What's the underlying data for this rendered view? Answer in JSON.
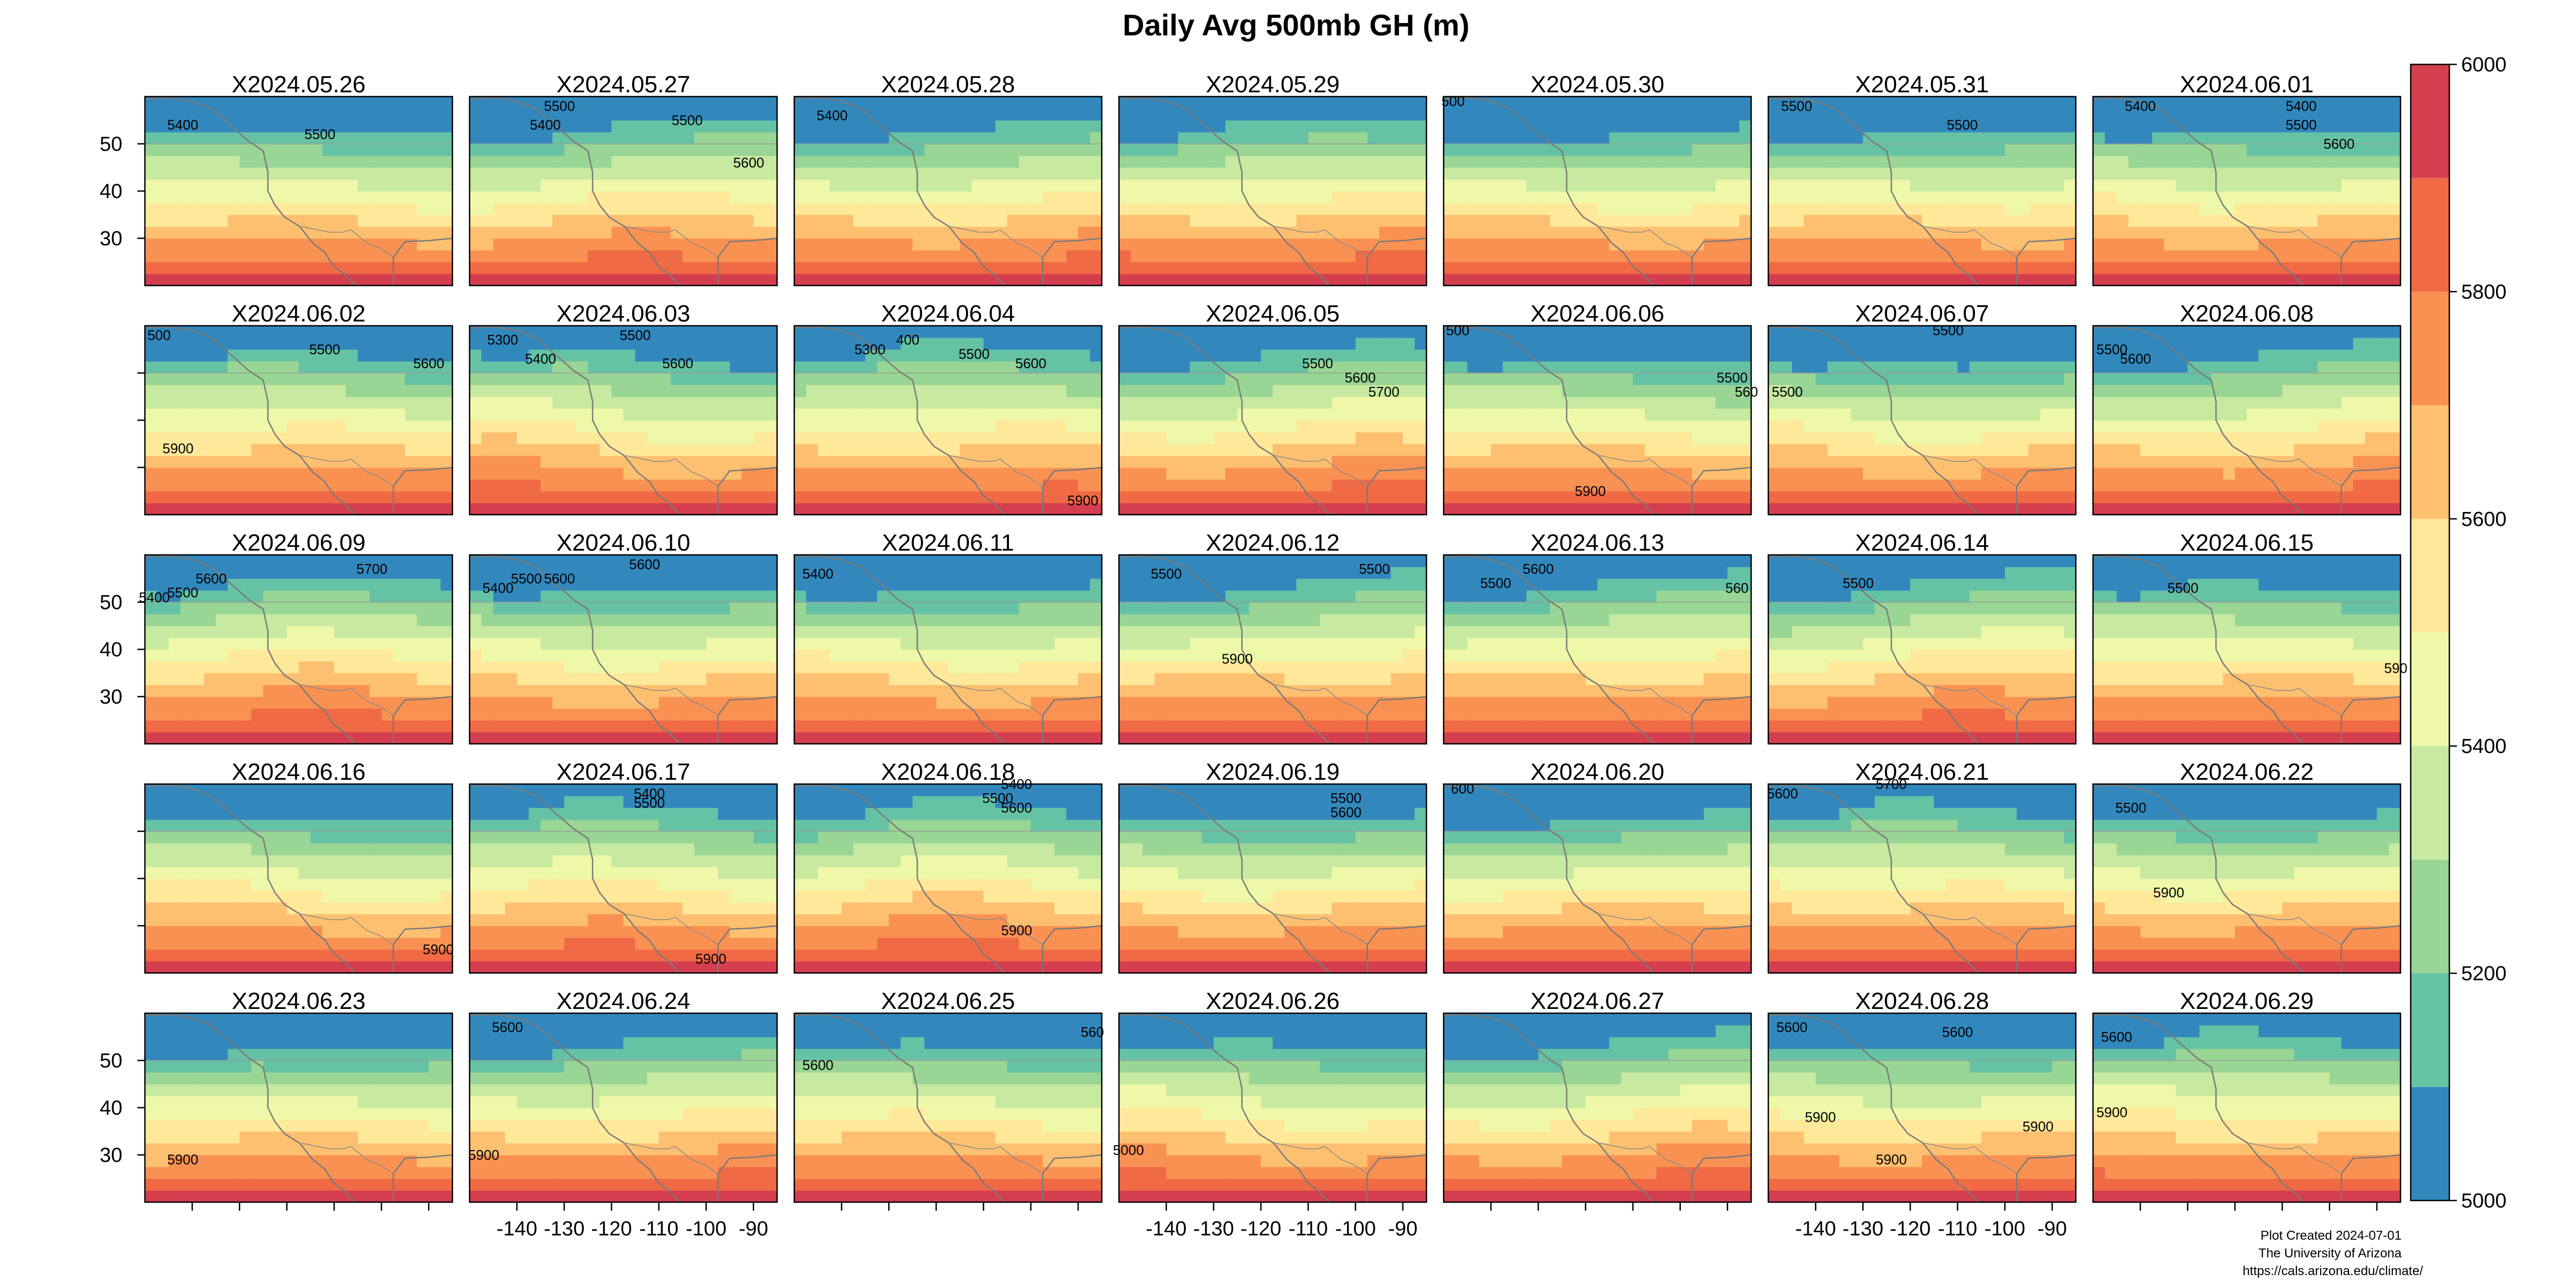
{
  "chart_data": {
    "type": "heatmap",
    "title": "Daily Avg 500mb GH (m)",
    "panels": [
      "X2024.05.26",
      "X2024.05.27",
      "X2024.05.28",
      "X2024.05.29",
      "X2024.05.30",
      "X2024.05.31",
      "X2024.06.01",
      "X2024.06.02",
      "X2024.06.03",
      "X2024.06.04",
      "X2024.06.05",
      "X2024.06.06",
      "X2024.06.07",
      "X2024.06.08",
      "X2024.06.09",
      "X2024.06.10",
      "X2024.06.11",
      "X2024.06.12",
      "X2024.06.13",
      "X2024.06.14",
      "X2024.06.15",
      "X2024.06.16",
      "X2024.06.17",
      "X2024.06.18",
      "X2024.06.19",
      "X2024.06.20",
      "X2024.06.21",
      "X2024.06.22",
      "X2024.06.23",
      "X2024.06.24",
      "X2024.06.25",
      "X2024.06.26",
      "X2024.06.27",
      "X2024.06.28",
      "X2024.06.29"
    ],
    "xlim": [
      -150,
      -85
    ],
    "ylim": [
      20,
      60
    ],
    "x_ticks": [
      -140,
      -130,
      -120,
      -110,
      -100,
      -90
    ],
    "x_tick_labels": [
      "-140",
      "-130",
      "-120",
      "-110",
      "-100",
      "-90"
    ],
    "y_ticks": [
      30,
      40,
      50
    ],
    "y_tick_labels": [
      "30",
      "40",
      "50"
    ],
    "colorbar": {
      "range": [
        5000,
        6000
      ],
      "breaks": [
        5000,
        5100,
        5200,
        5300,
        5400,
        5500,
        5600,
        5700,
        5800,
        5900,
        6000
      ],
      "labels": [
        "5000",
        "5200",
        "5400",
        "5600",
        "5800",
        "6000"
      ],
      "colors": [
        "#3288bd",
        "#66c2a5",
        "#99d594",
        "#c7e9a0",
        "#eef8a8",
        "#fee89a",
        "#fdc070",
        "#f99153",
        "#ef6a45",
        "#d53e4f"
      ]
    },
    "contour_labels": [
      [
        {
          "t": "5400",
          "x": -142,
          "y": 53
        },
        {
          "t": "5500",
          "x": -113,
          "y": 51
        }
      ],
      [
        {
          "t": "5400",
          "x": -134,
          "y": 53
        },
        {
          "t": "5500",
          "x": -131,
          "y": 57
        },
        {
          "t": "5500",
          "x": -104,
          "y": 54
        },
        {
          "t": "5600",
          "x": -91,
          "y": 45
        }
      ],
      [
        {
          "t": "5400",
          "x": -142,
          "y": 55
        }
      ],
      [],
      [
        {
          "t": "500",
          "x": -148,
          "y": 58
        }
      ],
      [
        {
          "t": "5500",
          "x": -144,
          "y": 57
        },
        {
          "t": "5500",
          "x": -109,
          "y": 53
        }
      ],
      [
        {
          "t": "5400",
          "x": -140,
          "y": 57
        },
        {
          "t": "5400",
          "x": -106,
          "y": 57
        },
        {
          "t": "5500",
          "x": -106,
          "y": 53
        },
        {
          "t": "5600",
          "x": -98,
          "y": 49
        }
      ],
      [
        {
          "t": "500",
          "x": -147,
          "y": 57
        },
        {
          "t": "5500",
          "x": -112,
          "y": 54
        },
        {
          "t": "5600",
          "x": -90,
          "y": 51
        },
        {
          "t": "5900",
          "x": -143,
          "y": 33
        }
      ],
      [
        {
          "t": "5300",
          "x": -143,
          "y": 56
        },
        {
          "t": "5400",
          "x": -135,
          "y": 52
        },
        {
          "t": "5500",
          "x": -115,
          "y": 57
        },
        {
          "t": "5600",
          "x": -106,
          "y": 51
        }
      ],
      [
        {
          "t": "5300",
          "x": -134,
          "y": 54
        },
        {
          "t": "400",
          "x": -126,
          "y": 56
        },
        {
          "t": "5500",
          "x": -112,
          "y": 53
        },
        {
          "t": "5600",
          "x": -100,
          "y": 51
        },
        {
          "t": "5900",
          "x": -89,
          "y": 22
        }
      ],
      [
        {
          "t": "5500",
          "x": -108,
          "y": 51
        },
        {
          "t": "5600",
          "x": -99,
          "y": 48
        },
        {
          "t": "5700",
          "x": -94,
          "y": 45
        }
      ],
      [
        {
          "t": "500",
          "x": -147,
          "y": 58
        },
        {
          "t": "5500",
          "x": -89,
          "y": 48
        },
        {
          "t": "560",
          "x": -86,
          "y": 45
        },
        {
          "t": "5900",
          "x": -119,
          "y": 24
        }
      ],
      [
        {
          "t": "5500",
          "x": -112,
          "y": 58
        },
        {
          "t": "5500",
          "x": -146,
          "y": 45
        }
      ],
      [
        {
          "t": "5500",
          "x": -146,
          "y": 54
        },
        {
          "t": "5600",
          "x": -141,
          "y": 52
        }
      ],
      [
        {
          "t": "5400",
          "x": -148,
          "y": 50
        },
        {
          "t": "5500",
          "x": -142,
          "y": 51
        },
        {
          "t": "5600",
          "x": -136,
          "y": 54
        },
        {
          "t": "5700",
          "x": -102,
          "y": 56
        }
      ],
      [
        {
          "t": "5400",
          "x": -144,
          "y": 52
        },
        {
          "t": "5500",
          "x": -138,
          "y": 54
        },
        {
          "t": "5600",
          "x": -131,
          "y": 54
        },
        {
          "t": "5600",
          "x": -113,
          "y": 57
        }
      ],
      [
        {
          "t": "5400",
          "x": -145,
          "y": 55
        }
      ],
      [
        {
          "t": "5500",
          "x": -140,
          "y": 55
        },
        {
          "t": "5500",
          "x": -96,
          "y": 56
        },
        {
          "t": "5900",
          "x": -125,
          "y": 37
        }
      ],
      [
        {
          "t": "5500",
          "x": -139,
          "y": 53
        },
        {
          "t": "5600",
          "x": -130,
          "y": 56
        },
        {
          "t": "560",
          "x": -88,
          "y": 52
        }
      ],
      [
        {
          "t": "5500",
          "x": -131,
          "y": 53
        }
      ],
      [
        {
          "t": "5500",
          "x": -131,
          "y": 52
        },
        {
          "t": "590",
          "x": -86,
          "y": 35
        }
      ],
      [
        {
          "t": "5900",
          "x": -88,
          "y": 24
        }
      ],
      [
        {
          "t": "5400",
          "x": -112,
          "y": 57
        },
        {
          "t": "5500",
          "x": -112,
          "y": 55
        },
        {
          "t": "5900",
          "x": -99,
          "y": 22
        }
      ],
      [
        {
          "t": "5400",
          "x": -103,
          "y": 59
        },
        {
          "t": "5500",
          "x": -107,
          "y": 56
        },
        {
          "t": "5600",
          "x": -103,
          "y": 54
        },
        {
          "t": "5900",
          "x": -103,
          "y": 28
        }
      ],
      [
        {
          "t": "5500",
          "x": -102,
          "y": 56
        },
        {
          "t": "5600",
          "x": -102,
          "y": 53
        }
      ],
      [
        {
          "t": "600",
          "x": -146,
          "y": 58
        }
      ],
      [
        {
          "t": "5600",
          "x": -147,
          "y": 57
        },
        {
          "t": "5700",
          "x": -124,
          "y": 59
        }
      ],
      [
        {
          "t": "5500",
          "x": -142,
          "y": 54
        },
        {
          "t": "5900",
          "x": -134,
          "y": 36
        }
      ],
      [
        {
          "t": "5900",
          "x": -142,
          "y": 28
        }
      ],
      [
        {
          "t": "5600",
          "x": -142,
          "y": 56
        },
        {
          "t": "5900",
          "x": -147,
          "y": 29
        }
      ],
      [
        {
          "t": "5600",
          "x": -145,
          "y": 48
        },
        {
          "t": "560",
          "x": -87,
          "y": 55
        }
      ],
      [
        {
          "t": "5000",
          "x": -148,
          "y": 30
        }
      ],
      [],
      [
        {
          "t": "5600",
          "x": -145,
          "y": 56
        },
        {
          "t": "5600",
          "x": -110,
          "y": 55
        },
        {
          "t": "5900",
          "x": -139,
          "y": 37
        },
        {
          "t": "5900",
          "x": -124,
          "y": 28
        },
        {
          "t": "5900",
          "x": -93,
          "y": 35
        }
      ],
      [
        {
          "t": "5600",
          "x": -145,
          "y": 54
        },
        {
          "t": "5900",
          "x": -146,
          "y": 38
        }
      ]
    ]
  },
  "credits": [
    "Plot Created 2024-07-01",
    "The University of Arizona",
    "https://cals.arizona.edu/climate/"
  ]
}
